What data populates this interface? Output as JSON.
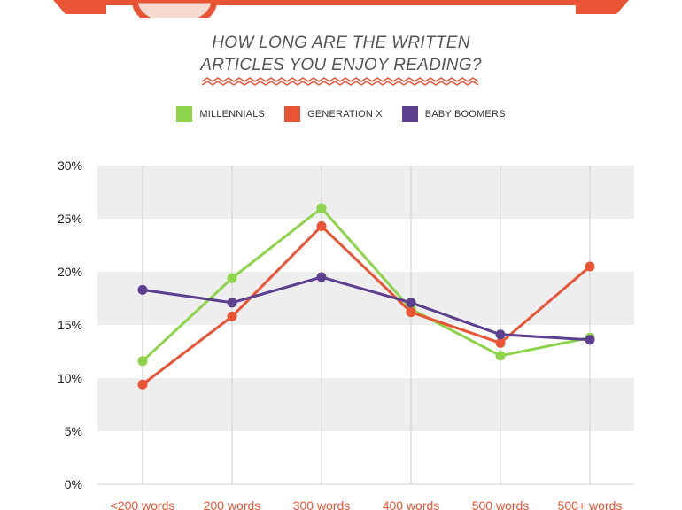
{
  "colors": {
    "banner": "#e85434",
    "banner_dark": "#c9432a",
    "band": "#eeeeee",
    "grid": "#cfcfcf",
    "zigzag": "#e85434"
  },
  "chart_data": {
    "type": "line",
    "title": "HOW LONG ARE THE WRITTEN ARTICLES YOU ENJOY READING?",
    "title_lines": [
      "HOW LONG ARE THE WRITTEN",
      "ARTICLES YOU ENJOY READING?"
    ],
    "categories": [
      "<200 words",
      "200 words",
      "300 words",
      "400 words",
      "500 words",
      "500+ words"
    ],
    "yticks": [
      "30%",
      "25%",
      "20%",
      "15%",
      "10%",
      "5%",
      "0%"
    ],
    "ylim": [
      0,
      30
    ],
    "legend_position": "top-center",
    "grid": true,
    "series": [
      {
        "name": "MILLENNIALS",
        "color": "#8ed44a",
        "values": [
          11.6,
          19.4,
          26.0,
          16.5,
          12.1,
          13.8
        ]
      },
      {
        "name": "GENERATION X",
        "color": "#e85434",
        "values": [
          9.4,
          15.8,
          24.3,
          16.2,
          13.3,
          20.5
        ]
      },
      {
        "name": "BABY BOOMERS",
        "color": "#5d3f8f",
        "values": [
          18.3,
          17.1,
          19.5,
          17.1,
          14.1,
          13.6
        ]
      }
    ]
  }
}
